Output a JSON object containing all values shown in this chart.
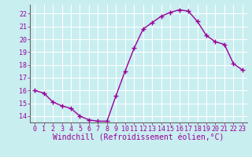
{
  "x": [
    0,
    1,
    2,
    3,
    4,
    5,
    6,
    7,
    8,
    9,
    10,
    11,
    12,
    13,
    14,
    15,
    16,
    17,
    18,
    19,
    20,
    21,
    22,
    23
  ],
  "y": [
    16.0,
    15.8,
    15.1,
    14.8,
    14.6,
    14.0,
    13.7,
    13.6,
    13.6,
    15.6,
    17.5,
    19.3,
    20.8,
    21.3,
    21.8,
    22.1,
    22.3,
    22.2,
    21.4,
    20.3,
    19.8,
    19.6,
    18.1,
    17.6
  ],
  "line_color": "#990099",
  "marker": "+",
  "marker_size": 4,
  "bg_color": "#c8eef0",
  "grid_color": "#aadddd",
  "xlabel": "Windchill (Refroidissement éolien,°C)",
  "xlim_min": -0.5,
  "xlim_max": 23.5,
  "ylim_min": 13.5,
  "ylim_max": 22.7,
  "yticks": [
    14,
    15,
    16,
    17,
    18,
    19,
    20,
    21,
    22
  ],
  "xticks": [
    0,
    1,
    2,
    3,
    4,
    5,
    6,
    7,
    8,
    9,
    10,
    11,
    12,
    13,
    14,
    15,
    16,
    17,
    18,
    19,
    20,
    21,
    22,
    23
  ],
  "xlabel_fontsize": 7,
  "tick_fontsize": 6,
  "label_color": "#990099",
  "linewidth": 1.0
}
